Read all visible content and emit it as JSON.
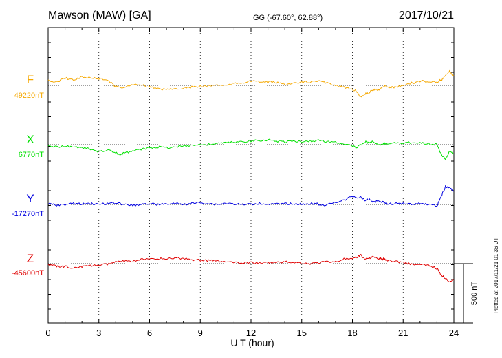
{
  "header": {
    "station": "Mawson (MAW)  [GA]",
    "coords": "GG (-67.60°,  62.88°)",
    "date": "2017/10/21"
  },
  "footer": {
    "plotted": "Plotted at 2017/11/21 01:36 UT",
    "scale_label": "500 nT"
  },
  "chart_data": {
    "type": "line",
    "title": "Mawson (MAW)  [GA]",
    "xlabel": "U T (hour)",
    "xlim": [
      0,
      24
    ],
    "xticks": [
      0,
      3,
      6,
      9,
      12,
      15,
      18,
      21,
      24
    ],
    "scale_nT": 500,
    "grid": true,
    "series": [
      {
        "name": "F",
        "baseline_label": "49220nT",
        "baseline_nT": 49220,
        "color": "#f5a800",
        "x": [
          0,
          0.5,
          1,
          1.5,
          2,
          2.5,
          3,
          3.5,
          4,
          4.5,
          5,
          5.5,
          6,
          6.5,
          7,
          7.5,
          8,
          8.5,
          9,
          9.5,
          10,
          10.5,
          11,
          11.5,
          12,
          12.5,
          13,
          13.5,
          14,
          14.5,
          15,
          15.5,
          16,
          16.5,
          17,
          17.5,
          18,
          18.25,
          18.5,
          18.75,
          19,
          19.25,
          19.5,
          19.75,
          20,
          20.25,
          20.5,
          21,
          21.5,
          22,
          22.5,
          23,
          23.25,
          23.5,
          23.75,
          24
        ],
        "y": [
          49260,
          49250,
          49280,
          49270,
          49290,
          49285,
          49275,
          49270,
          49210,
          49200,
          49225,
          49230,
          49205,
          49190,
          49185,
          49195,
          49195,
          49205,
          49210,
          49215,
          49225,
          49220,
          49235,
          49245,
          49255,
          49250,
          49250,
          49245,
          49230,
          49235,
          49245,
          49250,
          49255,
          49240,
          49225,
          49205,
          49180,
          49170,
          49120,
          49150,
          49160,
          49185,
          49180,
          49205,
          49215,
          49200,
          49205,
          49215,
          49240,
          49255,
          49255,
          49250,
          49265,
          49300,
          49340,
          49300
        ]
      },
      {
        "name": "X",
        "baseline_label": "6770nT",
        "baseline_nT": 6770,
        "color": "#00e000",
        "x": [
          0,
          0.5,
          1,
          1.5,
          2,
          2.5,
          3,
          3.5,
          4,
          4.25,
          4.5,
          5,
          5.5,
          6,
          6.5,
          7,
          7.5,
          8,
          8.5,
          9,
          9.5,
          10,
          10.5,
          11,
          11.5,
          12,
          12.5,
          13,
          13.5,
          14,
          14.5,
          15,
          15.5,
          16,
          16.5,
          17,
          17.5,
          18,
          18.25,
          18.5,
          18.75,
          19,
          19.25,
          19.5,
          19.75,
          20,
          20.5,
          21,
          21.5,
          22,
          22.5,
          23,
          23.25,
          23.5,
          23.75,
          24
        ],
        "y": [
          6765,
          6750,
          6760,
          6750,
          6745,
          6730,
          6710,
          6725,
          6700,
          6680,
          6700,
          6715,
          6730,
          6745,
          6750,
          6745,
          6750,
          6760,
          6765,
          6770,
          6770,
          6780,
          6785,
          6790,
          6795,
          6800,
          6805,
          6810,
          6800,
          6795,
          6800,
          6795,
          6800,
          6805,
          6795,
          6790,
          6780,
          6760,
          6740,
          6770,
          6795,
          6780,
          6800,
          6765,
          6775,
          6780,
          6785,
          6780,
          6790,
          6785,
          6780,
          6770,
          6690,
          6650,
          6710,
          6690
        ]
      },
      {
        "name": "Y",
        "baseline_label": "-17270nT",
        "baseline_nT": -17270,
        "color": "#0000e0",
        "x": [
          0,
          0.5,
          1,
          1.5,
          2,
          2.5,
          3,
          3.5,
          4,
          4.5,
          5,
          5.5,
          6,
          6.5,
          7,
          7.5,
          8,
          8.5,
          9,
          9.5,
          10,
          10.5,
          11,
          11.5,
          12,
          12.5,
          13,
          13.5,
          14,
          14.5,
          15,
          15.5,
          16,
          16.5,
          17,
          17.5,
          18,
          18.25,
          18.5,
          18.75,
          19,
          19.25,
          19.5,
          19.75,
          20,
          20.5,
          21,
          21.5,
          22,
          22.5,
          23,
          23.25,
          23.5,
          23.75,
          24
        ],
        "y": [
          -17265,
          -17275,
          -17270,
          -17262,
          -17268,
          -17262,
          -17270,
          -17262,
          -17255,
          -17270,
          -17277,
          -17268,
          -17262,
          -17270,
          -17266,
          -17264,
          -17270,
          -17262,
          -17255,
          -17262,
          -17270,
          -17260,
          -17266,
          -17272,
          -17266,
          -17262,
          -17266,
          -17268,
          -17266,
          -17262,
          -17270,
          -17262,
          -17266,
          -17276,
          -17250,
          -17236,
          -17200,
          -17212,
          -17210,
          -17232,
          -17226,
          -17250,
          -17240,
          -17246,
          -17262,
          -17264,
          -17260,
          -17266,
          -17262,
          -17268,
          -17282,
          -17200,
          -17120,
          -17130,
          -17160
        ]
      },
      {
        "name": "Z",
        "baseline_label": "-45600nT",
        "baseline_nT": -45600,
        "color": "#e00000",
        "x": [
          0,
          0.5,
          1,
          1.5,
          2,
          2.5,
          3,
          3.5,
          4,
          4.5,
          5,
          5.5,
          6,
          6.5,
          7,
          7.5,
          8,
          8.5,
          9,
          9.5,
          10,
          10.5,
          11,
          11.5,
          12,
          12.5,
          13,
          13.5,
          14,
          14.5,
          15,
          15.5,
          16,
          16.5,
          17,
          17.5,
          18,
          18.25,
          18.5,
          18.75,
          19,
          19.25,
          19.5,
          19.75,
          20,
          20.5,
          21,
          21.5,
          22,
          22.5,
          23,
          23.25,
          23.5,
          23.75,
          24
        ],
        "y": [
          -45605,
          -45622,
          -45624,
          -45635,
          -45625,
          -45618,
          -45612,
          -45605,
          -45586,
          -45580,
          -45578,
          -45566,
          -45560,
          -45558,
          -45558,
          -45552,
          -45556,
          -45566,
          -45570,
          -45574,
          -45578,
          -45585,
          -45592,
          -45596,
          -45590,
          -45595,
          -45593,
          -45590,
          -45585,
          -45588,
          -45595,
          -45600,
          -45592,
          -45582,
          -45585,
          -45560,
          -45562,
          -45548,
          -45526,
          -45562,
          -45550,
          -45545,
          -45560,
          -45558,
          -45568,
          -45580,
          -45588,
          -45605,
          -45610,
          -45615,
          -45640,
          -45700,
          -45720,
          -45750,
          -45740
        ]
      }
    ]
  }
}
